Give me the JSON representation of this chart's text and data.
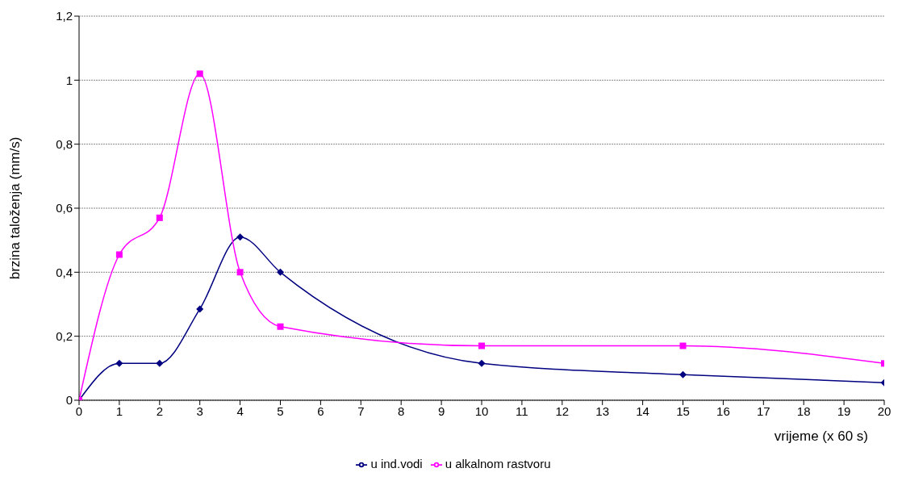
{
  "chart_data": {
    "type": "line",
    "xlabel": "vrijeme  (x 60 s)",
    "ylabel": "brzina taloženja (mm/s)",
    "x": [
      0,
      1,
      2,
      3,
      4,
      5,
      10,
      15,
      20
    ],
    "series": [
      {
        "name": "u ind.vodi",
        "color": "#000080",
        "marker": "diamond",
        "values": [
          0,
          0.115,
          0.115,
          0.285,
          0.51,
          0.4,
          0.115,
          0.08,
          0.055
        ]
      },
      {
        "name": "u alkalnom rastvoru",
        "color": "#ff00ff",
        "marker": "square",
        "values": [
          0,
          0.455,
          0.57,
          1.02,
          0.4,
          0.23,
          0.17,
          0.17,
          0.115
        ]
      }
    ],
    "xlim": [
      0,
      20
    ],
    "xticks": [
      0,
      1,
      2,
      3,
      4,
      5,
      6,
      7,
      8,
      9,
      10,
      11,
      12,
      13,
      14,
      15,
      16,
      17,
      18,
      19,
      20
    ],
    "ylim": [
      0,
      1.2
    ],
    "yticks": [
      0,
      {
        "value": 0.2,
        "label": "0,2"
      },
      {
        "value": 0.4,
        "label": "0,4"
      },
      {
        "value": 0.6,
        "label": "0,6"
      },
      {
        "value": 0.8,
        "label": "0,8"
      },
      1,
      {
        "value": 1.2,
        "label": "1,2"
      }
    ],
    "grid": "y",
    "legend": "bottom",
    "line_style": "solid"
  }
}
